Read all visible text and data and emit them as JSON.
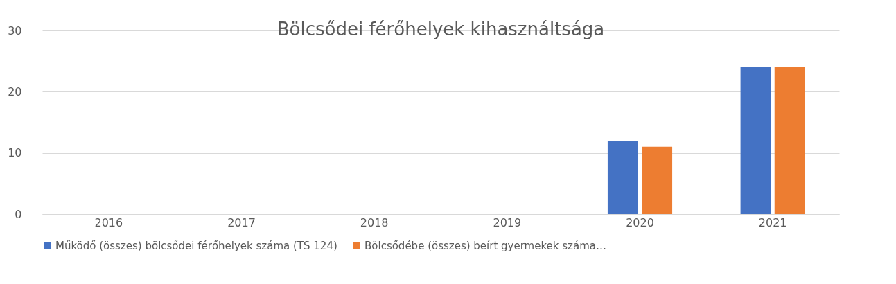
{
  "chart_data": {
    "type": "bar",
    "title": "Bölcsődei férőhelyek kihasználtsága",
    "categories": [
      "2016",
      "2017",
      "2018",
      "2019",
      "2020",
      "2021"
    ],
    "series": [
      {
        "name": "Működő (összes) bölcsődei férőhelyek száma (TS 124)",
        "color": "#4472c4",
        "values": [
          null,
          null,
          null,
          null,
          12,
          24
        ]
      },
      {
        "name": "Bölcsődébe (összes) beírt gyermekek száma…",
        "color": "#ed7d31",
        "values": [
          null,
          null,
          null,
          null,
          11,
          24
        ]
      }
    ],
    "ylim": [
      0,
      30
    ],
    "yticks": [
      0,
      10,
      20,
      30
    ],
    "grid": "y",
    "legend": "bottom"
  }
}
